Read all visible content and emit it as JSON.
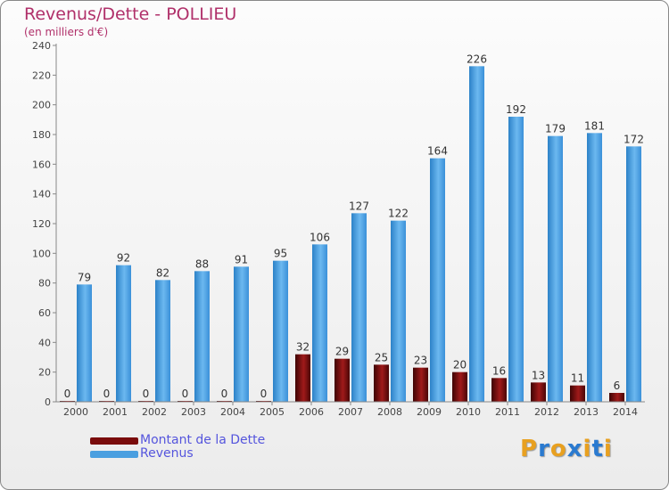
{
  "header": {
    "title": "Revenus/Dette - POLLIEU",
    "subtitle": "(en milliers d'€)"
  },
  "legend": {
    "items": [
      {
        "label": "Montant de la Dette",
        "color": "#7a0c0c"
      },
      {
        "label": "Revenus",
        "color": "#4a9fe0"
      }
    ]
  },
  "logo": {
    "letters": [
      "P",
      "r",
      "o",
      "x",
      "i",
      "t",
      "i"
    ],
    "colors": [
      "#e8a020",
      "#2a7ad0",
      "#e8a020",
      "#2a7ad0",
      "#e8a020",
      "#2a7ad0",
      "#e8a020"
    ]
  },
  "chart_data": {
    "type": "bar",
    "title": "Revenus/Dette - POLLIEU",
    "ylabel": "(en milliers d'€)",
    "xlabel": "",
    "categories": [
      "2000",
      "2001",
      "2002",
      "2003",
      "2004",
      "2005",
      "2006",
      "2007",
      "2008",
      "2009",
      "2010",
      "2011",
      "2012",
      "2013",
      "2014"
    ],
    "series": [
      {
        "name": "Montant de la Dette",
        "color": "#7a0c0c",
        "values": [
          0,
          0,
          0,
          0,
          0,
          0,
          32,
          29,
          25,
          23,
          20,
          16,
          13,
          11,
          6
        ]
      },
      {
        "name": "Revenus",
        "color": "#4a9fe0",
        "values": [
          79,
          92,
          82,
          88,
          91,
          95,
          106,
          127,
          122,
          164,
          226,
          192,
          179,
          181,
          172
        ]
      }
    ],
    "ylim": [
      0,
      240
    ],
    "yticks": [
      0,
      20,
      40,
      60,
      80,
      100,
      120,
      140,
      160,
      180,
      200,
      220,
      240
    ],
    "grid": false,
    "legend_position": "bottom-left"
  }
}
